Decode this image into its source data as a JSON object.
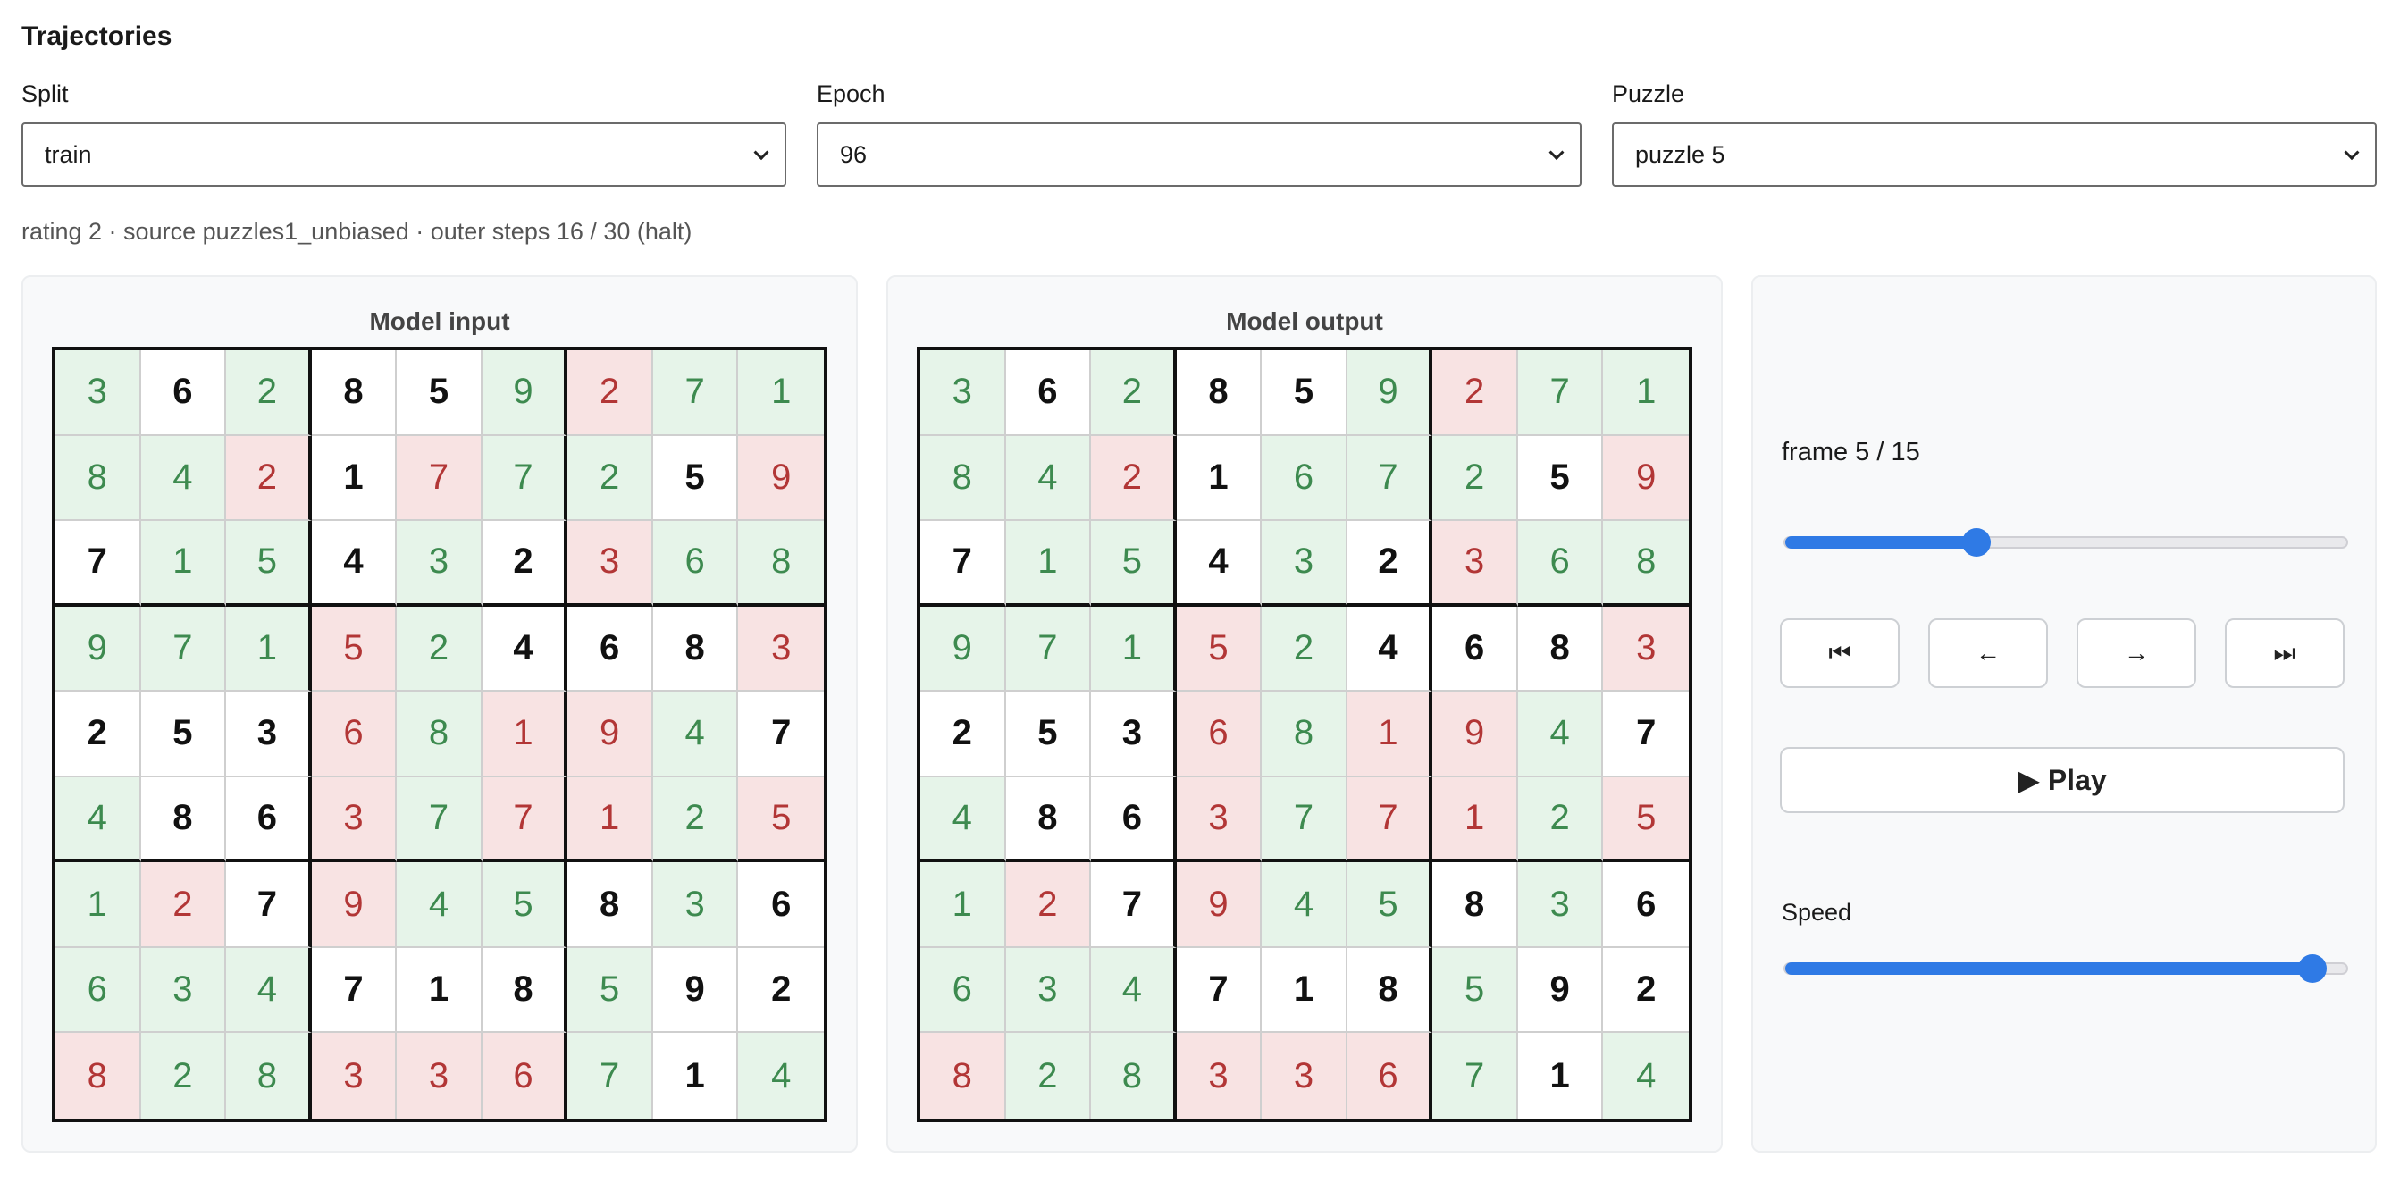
{
  "title": "Trajectories",
  "controls": {
    "split": {
      "label": "Split",
      "value": "train"
    },
    "epoch": {
      "label": "Epoch",
      "value": "96"
    },
    "puzzle": {
      "label": "Puzzle",
      "value": "puzzle 5"
    }
  },
  "meta": "rating 2 · source puzzles1_unbiased · outer steps 16 / 30 (halt)",
  "input_panel": {
    "title": "Model input",
    "cells": [
      [
        "3",
        "6",
        "2",
        "8",
        "5",
        "9",
        "2",
        "7",
        "1"
      ],
      [
        "8",
        "4",
        "2",
        "1",
        "7",
        "7",
        "2",
        "5",
        "9"
      ],
      [
        "7",
        "1",
        "5",
        "4",
        "3",
        "2",
        "3",
        "6",
        "8"
      ],
      [
        "9",
        "7",
        "1",
        "5",
        "2",
        "4",
        "6",
        "8",
        "3"
      ],
      [
        "2",
        "5",
        "3",
        "6",
        "8",
        "1",
        "9",
        "4",
        "7"
      ],
      [
        "4",
        "8",
        "6",
        "3",
        "7",
        "7",
        "1",
        "2",
        "5"
      ],
      [
        "1",
        "2",
        "7",
        "9",
        "4",
        "5",
        "8",
        "3",
        "6"
      ],
      [
        "6",
        "3",
        "4",
        "7",
        "1",
        "8",
        "5",
        "9",
        "2"
      ],
      [
        "8",
        "2",
        "8",
        "3",
        "3",
        "6",
        "7",
        "1",
        "4"
      ]
    ],
    "states": [
      [
        "ok",
        "given",
        "ok",
        "given",
        "given",
        "ok",
        "bad",
        "ok",
        "ok"
      ],
      [
        "ok",
        "ok",
        "bad",
        "given",
        "bad",
        "ok",
        "ok",
        "given",
        "bad"
      ],
      [
        "given",
        "ok",
        "ok",
        "given",
        "ok",
        "given",
        "bad",
        "ok",
        "ok"
      ],
      [
        "ok",
        "ok",
        "ok",
        "bad",
        "ok",
        "given",
        "given",
        "given",
        "bad"
      ],
      [
        "given",
        "given",
        "given",
        "bad",
        "ok",
        "bad",
        "bad",
        "ok",
        "given"
      ],
      [
        "ok",
        "given",
        "given",
        "bad",
        "ok",
        "bad",
        "bad",
        "ok",
        "bad"
      ],
      [
        "ok",
        "bad",
        "given",
        "bad",
        "ok",
        "ok",
        "given",
        "ok",
        "given"
      ],
      [
        "ok",
        "ok",
        "ok",
        "given",
        "given",
        "given",
        "ok",
        "given",
        "given"
      ],
      [
        "bad",
        "ok",
        "ok",
        "bad",
        "bad",
        "bad",
        "ok",
        "given",
        "ok"
      ]
    ]
  },
  "output_panel": {
    "title": "Model output",
    "cells": [
      [
        "3",
        "6",
        "2",
        "8",
        "5",
        "9",
        "2",
        "7",
        "1"
      ],
      [
        "8",
        "4",
        "2",
        "1",
        "6",
        "7",
        "2",
        "5",
        "9"
      ],
      [
        "7",
        "1",
        "5",
        "4",
        "3",
        "2",
        "3",
        "6",
        "8"
      ],
      [
        "9",
        "7",
        "1",
        "5",
        "2",
        "4",
        "6",
        "8",
        "3"
      ],
      [
        "2",
        "5",
        "3",
        "6",
        "8",
        "1",
        "9",
        "4",
        "7"
      ],
      [
        "4",
        "8",
        "6",
        "3",
        "7",
        "7",
        "1",
        "2",
        "5"
      ],
      [
        "1",
        "2",
        "7",
        "9",
        "4",
        "5",
        "8",
        "3",
        "6"
      ],
      [
        "6",
        "3",
        "4",
        "7",
        "1",
        "8",
        "5",
        "9",
        "2"
      ],
      [
        "8",
        "2",
        "8",
        "3",
        "3",
        "6",
        "7",
        "1",
        "4"
      ]
    ],
    "states": [
      [
        "ok",
        "given",
        "ok",
        "given",
        "given",
        "ok",
        "bad",
        "ok",
        "ok"
      ],
      [
        "ok",
        "ok",
        "bad",
        "given",
        "ok",
        "ok",
        "ok",
        "given",
        "bad"
      ],
      [
        "given",
        "ok",
        "ok",
        "given",
        "ok",
        "given",
        "bad",
        "ok",
        "ok"
      ],
      [
        "ok",
        "ok",
        "ok",
        "bad",
        "ok",
        "given",
        "given",
        "given",
        "bad"
      ],
      [
        "given",
        "given",
        "given",
        "bad",
        "ok",
        "bad",
        "bad",
        "ok",
        "given"
      ],
      [
        "ok",
        "given",
        "given",
        "bad",
        "ok",
        "bad",
        "bad",
        "ok",
        "bad"
      ],
      [
        "ok",
        "bad",
        "given",
        "bad",
        "ok",
        "ok",
        "given",
        "ok",
        "given"
      ],
      [
        "ok",
        "ok",
        "ok",
        "given",
        "given",
        "given",
        "ok",
        "given",
        "given"
      ],
      [
        "bad",
        "ok",
        "ok",
        "bad",
        "bad",
        "bad",
        "ok",
        "given",
        "ok"
      ]
    ]
  },
  "player": {
    "frame_label": "frame 5 / 15",
    "frame_current": 5,
    "frame_total": 15,
    "frame_progress": 0.34,
    "first_icon": "skip-to-start-icon",
    "first_glyph": "⏮",
    "prev_icon": "arrow-left-icon",
    "prev_glyph": "←",
    "next_icon": "arrow-right-icon",
    "next_glyph": "→",
    "last_icon": "skip-to-end-icon",
    "last_glyph": "⏭",
    "play_label": "▶ Play",
    "speed_label": "Speed",
    "speed_progress": 0.94
  },
  "colors": {
    "accent": "#2f7ae5",
    "correct_bg": "#e6f4e9",
    "correct_text": "#3d8a4f",
    "wrong_bg": "#f8e3e3",
    "wrong_text": "#b23636"
  }
}
